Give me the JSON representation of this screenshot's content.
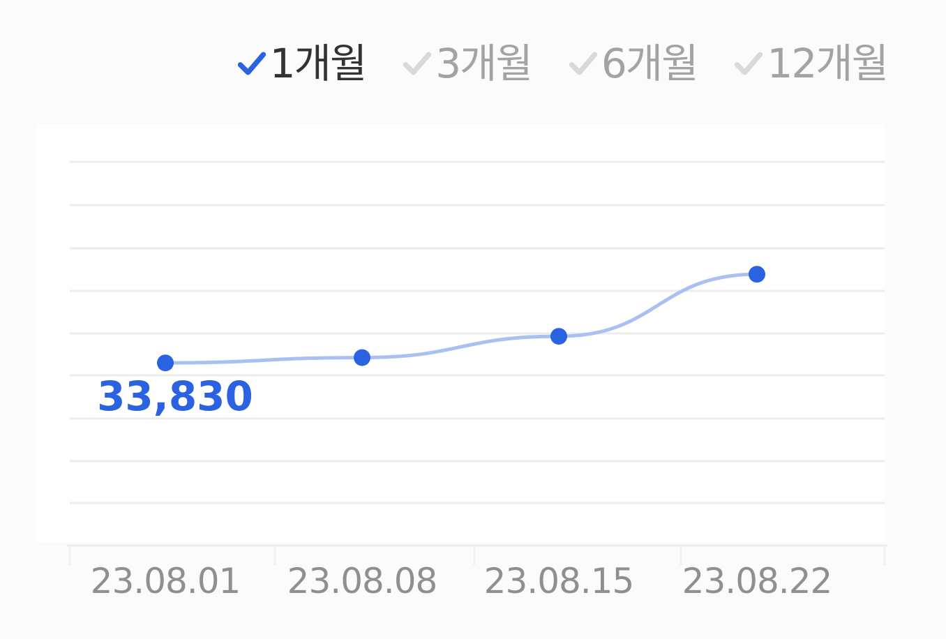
{
  "period_tabs": [
    {
      "label": "1개월",
      "active": true
    },
    {
      "label": "3개월",
      "active": false
    },
    {
      "label": "6개월",
      "active": false
    },
    {
      "label": "12개월",
      "active": false
    }
  ],
  "colors": {
    "accent": "#2a62e2",
    "line": "#a9c1f2",
    "grid": "#ececec",
    "inactive_check": "#d9d9d9",
    "tick_text": "#8f8f8f"
  },
  "chart_data": {
    "type": "line",
    "x": [
      "23.08.01",
      "23.08.08",
      "23.08.15",
      "23.08.22"
    ],
    "series": [
      {
        "values": [
          33830,
          33860,
          33980,
          34330
        ]
      }
    ],
    "data_labels": [
      {
        "index": 0,
        "text": "33,830"
      }
    ],
    "ylim": [
      32800,
      35200
    ],
    "grid": true,
    "title": "",
    "xlabel": "",
    "ylabel": ""
  }
}
